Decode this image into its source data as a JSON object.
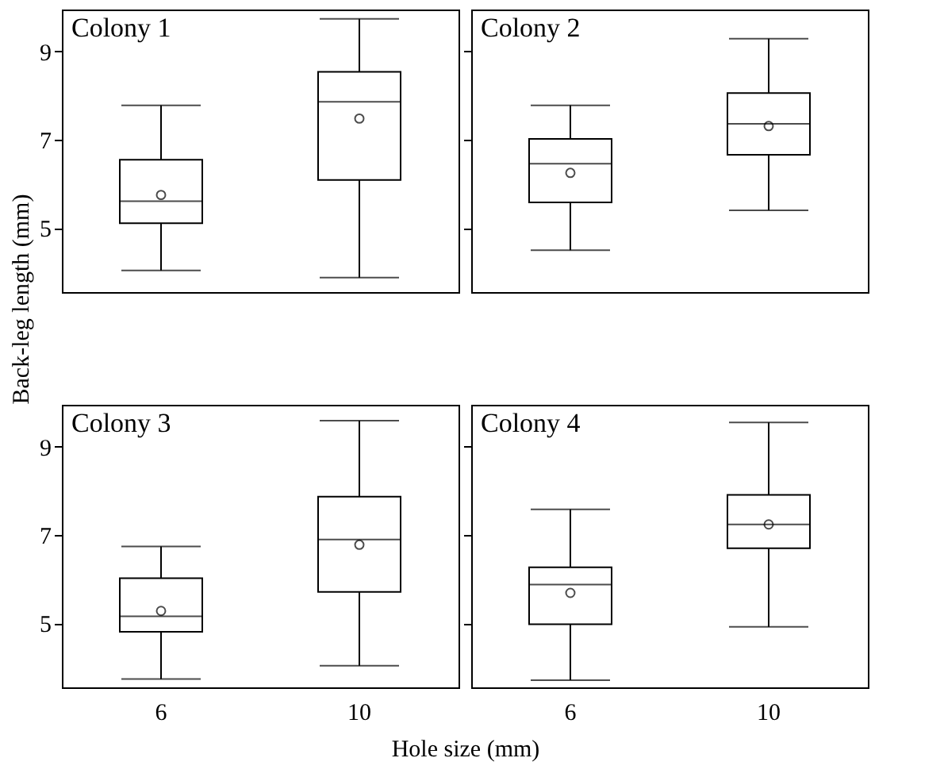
{
  "chart_data": [
    {
      "type": "box",
      "annotations": [
        "Colony 1"
      ],
      "ylabel": "Back-leg length (mm)",
      "categories": [
        "6",
        "10"
      ],
      "ylim": [
        3.55,
        9.95
      ],
      "yticks": [
        5,
        7,
        9
      ],
      "tick_labels": "y",
      "boxes": [
        {
          "low": 4.04,
          "q1": 5.11,
          "median": 5.61,
          "q3": 6.55,
          "high": 7.78,
          "mean": 5.75
        },
        {
          "low": 3.88,
          "q1": 6.09,
          "median": 7.86,
          "q3": 8.54,
          "high": 9.74,
          "mean": 7.48
        }
      ]
    },
    {
      "type": "box",
      "annotations": [
        "Colony 2"
      ],
      "categories": [
        "6",
        "10"
      ],
      "ylim": [
        3.55,
        9.95
      ],
      "yticks": [
        5,
        7,
        9
      ],
      "tick_labels": false,
      "boxes": [
        {
          "low": 4.5,
          "q1": 5.58,
          "median": 6.46,
          "q3": 7.02,
          "high": 7.78,
          "mean": 6.25
        },
        {
          "low": 5.4,
          "q1": 6.66,
          "median": 7.36,
          "q3": 8.06,
          "high": 9.29,
          "mean": 7.31
        }
      ]
    },
    {
      "type": "box",
      "annotations": [
        "Colony 3"
      ],
      "xlabel": "Hole size (mm)",
      "categories": [
        "6",
        "10"
      ],
      "ylim": [
        3.55,
        9.95
      ],
      "yticks": [
        5,
        7,
        9
      ],
      "boxes": [
        {
          "low": 3.74,
          "q1": 4.81,
          "median": 5.16,
          "q3": 6.02,
          "high": 6.74,
          "mean": 5.28
        },
        {
          "low": 4.04,
          "q1": 5.71,
          "median": 6.9,
          "q3": 7.87,
          "high": 9.59,
          "mean": 6.78
        }
      ]
    },
    {
      "type": "box",
      "annotations": [
        "Colony 4"
      ],
      "categories": [
        "6",
        "10"
      ],
      "ylim": [
        3.55,
        9.95
      ],
      "yticks": [
        5,
        7,
        9
      ],
      "tick_labels": "x",
      "boxes": [
        {
          "low": 3.71,
          "q1": 4.98,
          "median": 5.88,
          "q3": 6.27,
          "high": 7.58,
          "mean": 5.69
        },
        {
          "low": 4.92,
          "q1": 6.7,
          "median": 7.24,
          "q3": 7.91,
          "high": 9.55,
          "mean": 7.24
        }
      ]
    }
  ]
}
